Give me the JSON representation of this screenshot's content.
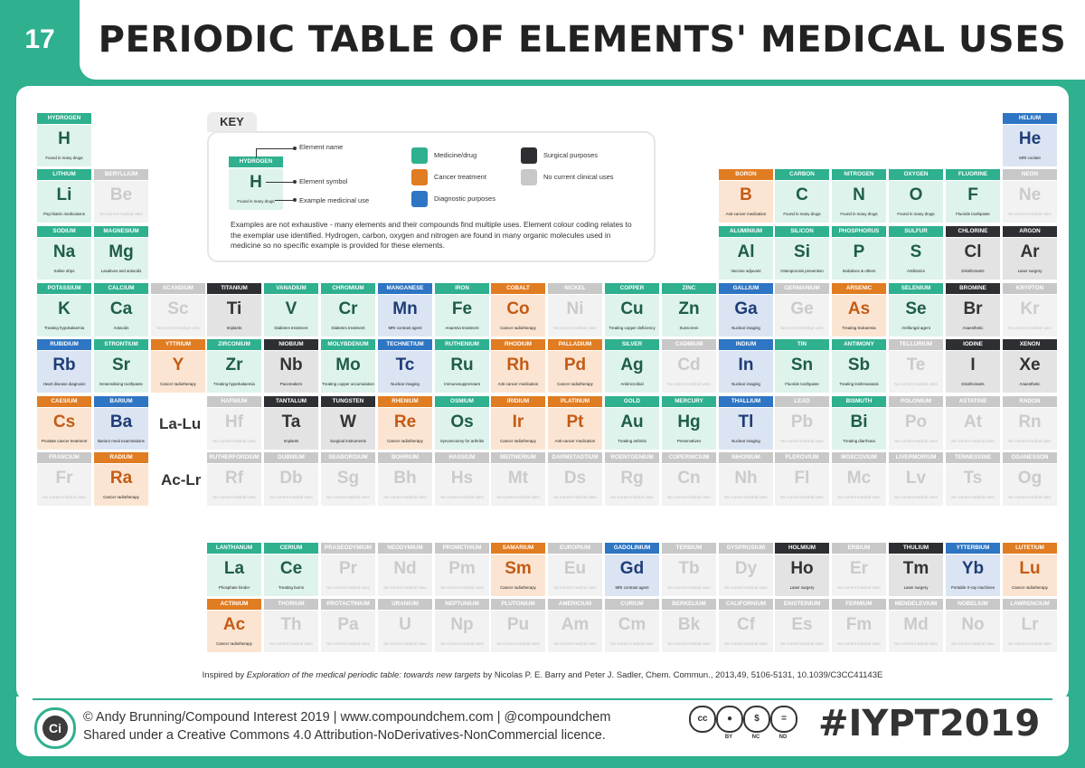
{
  "infographic": {
    "number": "17",
    "title": "PERIODIC TABLE OF ELEMENTS' MEDICAL USES"
  },
  "key": {
    "tab": "KEY",
    "example": {
      "name": "HYDROGEN",
      "symbol": "H",
      "use": "Found in many drugs"
    },
    "pointer_labels": {
      "name": "Element name",
      "symbol": "Element symbol",
      "use": "Example medicinal use"
    },
    "legend": [
      {
        "id": "med",
        "label": "Medicine/drug",
        "color": "#2fb08f"
      },
      {
        "id": "can",
        "label": "Cancer treatment",
        "color": "#e07c22"
      },
      {
        "id": "dia",
        "label": "Diagnostic purposes",
        "color": "#2e75c3"
      },
      {
        "id": "sur",
        "label": "Surgical purposes",
        "color": "#2d2f33"
      },
      {
        "id": "none",
        "label": "No current clinical uses",
        "color": "#c8c8c8"
      }
    ],
    "note": "Examples are not exhaustive - many elements and their compounds find multiple uses. Element colour coding relates to the exemplar use identified. Hydrogen, carbon, oxygen and nitrogen are found in many organic molecules used in medicine so no specific example is provided for these elements."
  },
  "placeholders": {
    "lanthanides": "La-Lu",
    "actinides": "Ac-Lr"
  },
  "no_use_text": "No current medical uses",
  "elements": [
    {
      "n": "HYDROGEN",
      "s": "H",
      "c": "med",
      "u": "Found in many drugs",
      "r": 0,
      "col": 0
    },
    {
      "n": "HELIUM",
      "s": "He",
      "c": "dia",
      "u": "MRI coolant",
      "r": 0,
      "col": 17
    },
    {
      "n": "LITHIUM",
      "s": "Li",
      "c": "med",
      "u": "Psychiatric medications",
      "r": 1,
      "col": 0
    },
    {
      "n": "BERYLLIUM",
      "s": "Be",
      "c": "none",
      "u": "",
      "r": 1,
      "col": 1
    },
    {
      "n": "BORON",
      "s": "B",
      "c": "can",
      "u": "Anti-cancer medication",
      "r": 1,
      "col": 12
    },
    {
      "n": "CARBON",
      "s": "C",
      "c": "med",
      "u": "Found in many drugs",
      "r": 1,
      "col": 13
    },
    {
      "n": "NITROGEN",
      "s": "N",
      "c": "med",
      "u": "Found in many drugs",
      "r": 1,
      "col": 14
    },
    {
      "n": "OXYGEN",
      "s": "O",
      "c": "med",
      "u": "Found in many drugs",
      "r": 1,
      "col": 15
    },
    {
      "n": "FLUORINE",
      "s": "F",
      "c": "med",
      "u": "Fluoride toothpaste",
      "r": 1,
      "col": 16
    },
    {
      "n": "NEON",
      "s": "Ne",
      "c": "none",
      "u": "",
      "r": 1,
      "col": 17
    },
    {
      "n": "SODIUM",
      "s": "Na",
      "c": "med",
      "u": "Saline drips",
      "r": 2,
      "col": 0
    },
    {
      "n": "MAGNESIUM",
      "s": "Mg",
      "c": "med",
      "u": "Laxatives and antacids",
      "r": 2,
      "col": 1
    },
    {
      "n": "ALUMINIUM",
      "s": "Al",
      "c": "med",
      "u": "Vaccine adjuvant",
      "r": 2,
      "col": 12
    },
    {
      "n": "SILICON",
      "s": "Si",
      "c": "med",
      "u": "Osteoporosis prevention",
      "r": 2,
      "col": 13
    },
    {
      "n": "PHOSPHORUS",
      "s": "P",
      "c": "med",
      "u": "Sedatives & others",
      "r": 2,
      "col": 14
    },
    {
      "n": "SULFUR",
      "s": "S",
      "c": "med",
      "u": "Antibiotics",
      "r": 2,
      "col": 15
    },
    {
      "n": "CHLORINE",
      "s": "Cl",
      "c": "sur",
      "u": "Disinfectants",
      "r": 2,
      "col": 16
    },
    {
      "n": "ARGON",
      "s": "Ar",
      "c": "sur",
      "u": "Laser surgery",
      "r": 2,
      "col": 17
    },
    {
      "n": "POTASSIUM",
      "s": "K",
      "c": "med",
      "u": "Treating hypokalaemia",
      "r": 3,
      "col": 0
    },
    {
      "n": "CALCIUM",
      "s": "Ca",
      "c": "med",
      "u": "Antacids",
      "r": 3,
      "col": 1
    },
    {
      "n": "SCANDIUM",
      "s": "Sc",
      "c": "none",
      "u": "",
      "r": 3,
      "col": 2
    },
    {
      "n": "TITANIUM",
      "s": "Ti",
      "c": "sur",
      "u": "Implants",
      "r": 3,
      "col": 3
    },
    {
      "n": "VANADIUM",
      "s": "V",
      "c": "med",
      "u": "Diabetes treatment",
      "r": 3,
      "col": 4
    },
    {
      "n": "CHROMIUM",
      "s": "Cr",
      "c": "med",
      "u": "Diabetes treatment",
      "r": 3,
      "col": 5
    },
    {
      "n": "MANGANESE",
      "s": "Mn",
      "c": "dia",
      "u": "MRI contrast agent",
      "r": 3,
      "col": 6
    },
    {
      "n": "IRON",
      "s": "Fe",
      "c": "med",
      "u": "Anaemia treatment",
      "r": 3,
      "col": 7
    },
    {
      "n": "COBALT",
      "s": "Co",
      "c": "can",
      "u": "Cancer radiotherapy",
      "r": 3,
      "col": 8
    },
    {
      "n": "NICKEL",
      "s": "Ni",
      "c": "none",
      "u": "",
      "r": 3,
      "col": 9
    },
    {
      "n": "COPPER",
      "s": "Cu",
      "c": "med",
      "u": "Treating copper deficiency",
      "r": 3,
      "col": 10
    },
    {
      "n": "ZINC",
      "s": "Zn",
      "c": "med",
      "u": "Sunscreen",
      "r": 3,
      "col": 11
    },
    {
      "n": "GALLIUM",
      "s": "Ga",
      "c": "dia",
      "u": "Nuclear imaging",
      "r": 3,
      "col": 12
    },
    {
      "n": "GERMANIUM",
      "s": "Ge",
      "c": "none",
      "u": "",
      "r": 3,
      "col": 13
    },
    {
      "n": "ARSENIC",
      "s": "As",
      "c": "can",
      "u": "Treating leukaemia",
      "r": 3,
      "col": 14
    },
    {
      "n": "SELENIUM",
      "s": "Se",
      "c": "med",
      "u": "Antifungal agent",
      "r": 3,
      "col": 15
    },
    {
      "n": "BROMINE",
      "s": "Br",
      "c": "sur",
      "u": "Anaesthetic",
      "r": 3,
      "col": 16
    },
    {
      "n": "KRYPTON",
      "s": "Kr",
      "c": "none",
      "u": "",
      "r": 3,
      "col": 17
    },
    {
      "n": "RUBIDIUM",
      "s": "Rb",
      "c": "dia",
      "u": "Heart disease diagnosis",
      "r": 4,
      "col": 0
    },
    {
      "n": "STRONTIUM",
      "s": "Sr",
      "c": "med",
      "u": "Desensitising toothpaste",
      "r": 4,
      "col": 1
    },
    {
      "n": "YTTRIUM",
      "s": "Y",
      "c": "can",
      "u": "Cancer radiotherapy",
      "r": 4,
      "col": 2
    },
    {
      "n": "ZIRCONIUM",
      "s": "Zr",
      "c": "med",
      "u": "Treating hyperkalaemia",
      "r": 4,
      "col": 3
    },
    {
      "n": "NIOBIUM",
      "s": "Nb",
      "c": "sur",
      "u": "Pacemakers",
      "r": 4,
      "col": 4
    },
    {
      "n": "MOLYBDENUM",
      "s": "Mo",
      "c": "med",
      "u": "Treating copper accumulation",
      "r": 4,
      "col": 5
    },
    {
      "n": "TECHNETIUM",
      "s": "Tc",
      "c": "dia",
      "u": "Nuclear imaging",
      "r": 4,
      "col": 6
    },
    {
      "n": "RUTHENIUM",
      "s": "Ru",
      "c": "med",
      "u": "Immunosuppressant",
      "r": 4,
      "col": 7
    },
    {
      "n": "RHODIUM",
      "s": "Rh",
      "c": "can",
      "u": "Anti-cancer medication",
      "r": 4,
      "col": 8
    },
    {
      "n": "PALLADIUM",
      "s": "Pd",
      "c": "can",
      "u": "Cancer radiotherapy",
      "r": 4,
      "col": 9
    },
    {
      "n": "SILVER",
      "s": "Ag",
      "c": "med",
      "u": "Antimicrobial",
      "r": 4,
      "col": 10
    },
    {
      "n": "CADMIUM",
      "s": "Cd",
      "c": "none",
      "u": "",
      "r": 4,
      "col": 11
    },
    {
      "n": "INDIUM",
      "s": "In",
      "c": "dia",
      "u": "Nuclear imaging",
      "r": 4,
      "col": 12
    },
    {
      "n": "TIN",
      "s": "Sn",
      "c": "med",
      "u": "Fluoride toothpaste",
      "r": 4,
      "col": 13
    },
    {
      "n": "ANTIMONY",
      "s": "Sb",
      "c": "med",
      "u": "Treating leishmaniasis",
      "r": 4,
      "col": 14
    },
    {
      "n": "TELLURIUM",
      "s": "Te",
      "c": "none",
      "u": "",
      "r": 4,
      "col": 15
    },
    {
      "n": "IODINE",
      "s": "I",
      "c": "sur",
      "u": "Disinfectants",
      "r": 4,
      "col": 16
    },
    {
      "n": "XENON",
      "s": "Xe",
      "c": "sur",
      "u": "Anaesthetic",
      "r": 4,
      "col": 17
    },
    {
      "n": "CAESIUM",
      "s": "Cs",
      "c": "can",
      "u": "Prostate cancer treatment",
      "r": 5,
      "col": 0
    },
    {
      "n": "BARIUM",
      "s": "Ba",
      "c": "dia",
      "u": "Barium meal examinations",
      "r": 5,
      "col": 1
    },
    {
      "n": "HAFNIUM",
      "s": "Hf",
      "c": "none",
      "u": "",
      "r": 5,
      "col": 3
    },
    {
      "n": "TANTALUM",
      "s": "Ta",
      "c": "sur",
      "u": "Implants",
      "r": 5,
      "col": 4
    },
    {
      "n": "TUNGSTEN",
      "s": "W",
      "c": "sur",
      "u": "Surgical instruments",
      "r": 5,
      "col": 5
    },
    {
      "n": "RHENIUM",
      "s": "Re",
      "c": "can",
      "u": "Cancer radiotherapy",
      "r": 5,
      "col": 6
    },
    {
      "n": "OSMIUM",
      "s": "Os",
      "c": "med",
      "u": "Synovectomy for arthritis",
      "r": 5,
      "col": 7
    },
    {
      "n": "IRIDIUM",
      "s": "Ir",
      "c": "can",
      "u": "Cancer radiotherapy",
      "r": 5,
      "col": 8
    },
    {
      "n": "PLATINUM",
      "s": "Pt",
      "c": "can",
      "u": "Anti-cancer medication",
      "r": 5,
      "col": 9
    },
    {
      "n": "GOLD",
      "s": "Au",
      "c": "med",
      "u": "Treating arthritis",
      "r": 5,
      "col": 10
    },
    {
      "n": "MERCURY",
      "s": "Hg",
      "c": "med",
      "u": "Preservatives",
      "r": 5,
      "col": 11
    },
    {
      "n": "THALLIUM",
      "s": "Tl",
      "c": "dia",
      "u": "Nuclear imaging",
      "r": 5,
      "col": 12
    },
    {
      "n": "LEAD",
      "s": "Pb",
      "c": "none",
      "u": "",
      "r": 5,
      "col": 13
    },
    {
      "n": "BISMUTH",
      "s": "Bi",
      "c": "med",
      "u": "Treating diarrhoea",
      "r": 5,
      "col": 14
    },
    {
      "n": "POLONIUM",
      "s": "Po",
      "c": "none",
      "u": "",
      "r": 5,
      "col": 15
    },
    {
      "n": "ASTATINE",
      "s": "At",
      "c": "none",
      "u": "",
      "r": 5,
      "col": 16
    },
    {
      "n": "RADON",
      "s": "Rn",
      "c": "none",
      "u": "",
      "r": 5,
      "col": 17
    },
    {
      "n": "FRANCIUM",
      "s": "Fr",
      "c": "none",
      "u": "",
      "r": 6,
      "col": 0
    },
    {
      "n": "RADIUM",
      "s": "Ra",
      "c": "can",
      "u": "Cancer radiotherapy",
      "r": 6,
      "col": 1
    },
    {
      "n": "RUTHERFORDIUM",
      "s": "Rf",
      "c": "none",
      "u": "",
      "r": 6,
      "col": 3
    },
    {
      "n": "DUBNIUM",
      "s": "Db",
      "c": "none",
      "u": "",
      "r": 6,
      "col": 4
    },
    {
      "n": "SEABORGIUM",
      "s": "Sg",
      "c": "none",
      "u": "",
      "r": 6,
      "col": 5
    },
    {
      "n": "BOHRIUM",
      "s": "Bh",
      "c": "none",
      "u": "",
      "r": 6,
      "col": 6
    },
    {
      "n": "HASSIUM",
      "s": "Hs",
      "c": "none",
      "u": "",
      "r": 6,
      "col": 7
    },
    {
      "n": "MEITNERIUM",
      "s": "Mt",
      "c": "none",
      "u": "",
      "r": 6,
      "col": 8
    },
    {
      "n": "DARMSTADTIUM",
      "s": "Ds",
      "c": "none",
      "u": "",
      "r": 6,
      "col": 9
    },
    {
      "n": "ROENTGENIUM",
      "s": "Rg",
      "c": "none",
      "u": "",
      "r": 6,
      "col": 10
    },
    {
      "n": "COPERNICIUM",
      "s": "Cn",
      "c": "none",
      "u": "",
      "r": 6,
      "col": 11
    },
    {
      "n": "NIHONIUM",
      "s": "Nh",
      "c": "none",
      "u": "",
      "r": 6,
      "col": 12
    },
    {
      "n": "FLEROVIUM",
      "s": "Fl",
      "c": "none",
      "u": "",
      "r": 6,
      "col": 13
    },
    {
      "n": "MOSCOVIUM",
      "s": "Mc",
      "c": "none",
      "u": "",
      "r": 6,
      "col": 14
    },
    {
      "n": "LIVERMORIUM",
      "s": "Lv",
      "c": "none",
      "u": "",
      "r": 6,
      "col": 15
    },
    {
      "n": "TENNESSINE",
      "s": "Ts",
      "c": "none",
      "u": "",
      "r": 6,
      "col": 16
    },
    {
      "n": "OGANESSON",
      "s": "Og",
      "c": "none",
      "u": "",
      "r": 6,
      "col": 17
    },
    {
      "n": "LANTHANUM",
      "s": "La",
      "c": "med",
      "u": "Phosphate binder",
      "r": 7,
      "col": 3
    },
    {
      "n": "CERIUM",
      "s": "Ce",
      "c": "med",
      "u": "Treating burns",
      "r": 7,
      "col": 4
    },
    {
      "n": "PRASEODYMIUM",
      "s": "Pr",
      "c": "none",
      "u": "",
      "r": 7,
      "col": 5
    },
    {
      "n": "NEODYMIUM",
      "s": "Nd",
      "c": "none",
      "u": "",
      "r": 7,
      "col": 6
    },
    {
      "n": "PROMETHIUM",
      "s": "Pm",
      "c": "none",
      "u": "",
      "r": 7,
      "col": 7
    },
    {
      "n": "SAMARIUM",
      "s": "Sm",
      "c": "can",
      "u": "Cancer radiotherapy",
      "r": 7,
      "col": 8
    },
    {
      "n": "EUROPIUM",
      "s": "Eu",
      "c": "none",
      "u": "",
      "r": 7,
      "col": 9
    },
    {
      "n": "GADOLINIUM",
      "s": "Gd",
      "c": "dia",
      "u": "MRI contrast agent",
      "r": 7,
      "col": 10
    },
    {
      "n": "TERBIUM",
      "s": "Tb",
      "c": "none",
      "u": "",
      "r": 7,
      "col": 11
    },
    {
      "n": "DYSPROSIUM",
      "s": "Dy",
      "c": "none",
      "u": "",
      "r": 7,
      "col": 12
    },
    {
      "n": "HOLMIUM",
      "s": "Ho",
      "c": "sur",
      "u": "Laser surgery",
      "r": 7,
      "col": 13
    },
    {
      "n": "ERBIUM",
      "s": "Er",
      "c": "none",
      "u": "",
      "r": 7,
      "col": 14
    },
    {
      "n": "THULIUM",
      "s": "Tm",
      "c": "sur",
      "u": "Laser surgery",
      "r": 7,
      "col": 15
    },
    {
      "n": "YTTERBIUM",
      "s": "Yb",
      "c": "dia",
      "u": "Portable X-ray machines",
      "r": 7,
      "col": 16
    },
    {
      "n": "LUTETIUM",
      "s": "Lu",
      "c": "can",
      "u": "Cancer radiotherapy",
      "r": 7,
      "col": 17
    },
    {
      "n": "ACTINIUM",
      "s": "Ac",
      "c": "can",
      "u": "Cancer radiotherapy",
      "r": 8,
      "col": 3
    },
    {
      "n": "THORIUM",
      "s": "Th",
      "c": "none",
      "u": "",
      "r": 8,
      "col": 4
    },
    {
      "n": "PROTACTINIUM",
      "s": "Pa",
      "c": "none",
      "u": "",
      "r": 8,
      "col": 5
    },
    {
      "n": "URANIUM",
      "s": "U",
      "c": "none",
      "u": "",
      "r": 8,
      "col": 6
    },
    {
      "n": "NEPTUNIUM",
      "s": "Np",
      "c": "none",
      "u": "",
      "r": 8,
      "col": 7
    },
    {
      "n": "PLUTONIUM",
      "s": "Pu",
      "c": "none",
      "u": "",
      "r": 8,
      "col": 8
    },
    {
      "n": "AMERICIUM",
      "s": "Am",
      "c": "none",
      "u": "",
      "r": 8,
      "col": 9
    },
    {
      "n": "CURIUM",
      "s": "Cm",
      "c": "none",
      "u": "",
      "r": 8,
      "col": 10
    },
    {
      "n": "BERKELIUM",
      "s": "Bk",
      "c": "none",
      "u": "",
      "r": 8,
      "col": 11
    },
    {
      "n": "CALIFORNIUM",
      "s": "Cf",
      "c": "none",
      "u": "",
      "r": 8,
      "col": 12
    },
    {
      "n": "EINSTEINIUM",
      "s": "Es",
      "c": "none",
      "u": "",
      "r": 8,
      "col": 13
    },
    {
      "n": "FERMIUM",
      "s": "Fm",
      "c": "none",
      "u": "",
      "r": 8,
      "col": 14
    },
    {
      "n": "MENDELEVIUM",
      "s": "Md",
      "c": "none",
      "u": "",
      "r": 8,
      "col": 15
    },
    {
      "n": "NOBELIUM",
      "s": "No",
      "c": "none",
      "u": "",
      "r": 8,
      "col": 16
    },
    {
      "n": "LAWRENCIUM",
      "s": "Lr",
      "c": "none",
      "u": "",
      "r": 8,
      "col": 17
    }
  ],
  "citation": {
    "prefix": "Inspired by ",
    "title": "Exploration of the medical periodic table: towards new targets",
    "suffix": " by Nicolas P. E. Barry  and  Peter J. Sadler, Chem. Commun., 2013,49, 5106-5131, 10.1039/C3CC41143E"
  },
  "footer": {
    "logo": "Ci",
    "line1": "© Andy Brunning/Compound Interest 2019 | www.compoundchem.com | @compoundchem",
    "line2": "Shared under a Creative Commons 4.0 Attribution-NoDerivatives-NonCommercial licence.",
    "license_labels": [
      "BY",
      "NC",
      "ND"
    ],
    "hashtag": "#IYPT2019"
  }
}
